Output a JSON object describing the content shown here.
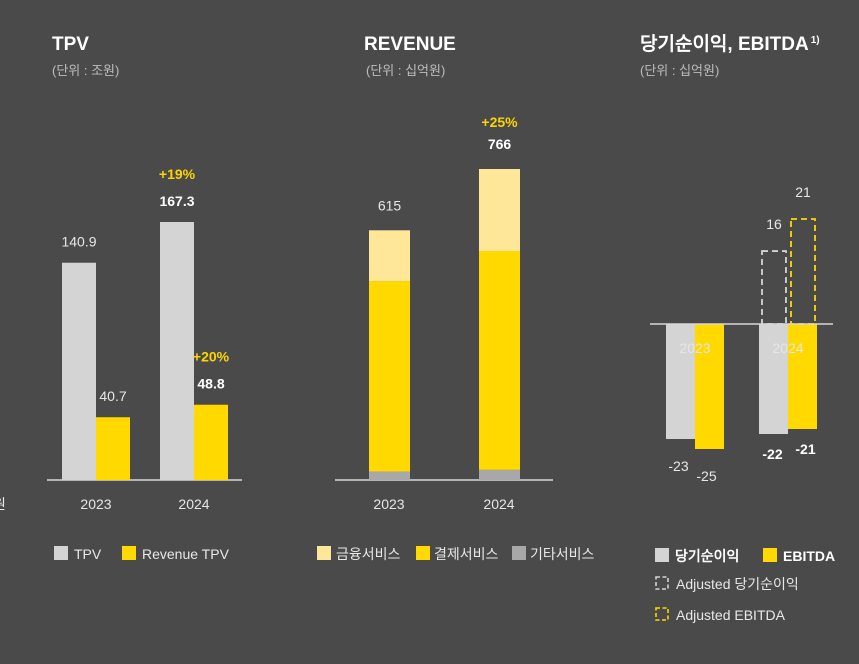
{
  "colors": {
    "background": "#4a4a4a",
    "gray": "#d4d4d4",
    "yellow": "#ffd900",
    "light_yellow": "#ffe79a",
    "dark_gray": "#a8a8a8",
    "growth": "#ffd400"
  },
  "edge_fragment": "원",
  "chart_data": [
    {
      "type": "bar",
      "title": "TPV",
      "unit": "(단위 : 조원)",
      "categories": [
        "2023",
        "2024"
      ],
      "series": [
        {
          "name": "TPV",
          "values": [
            140.9,
            167.3
          ],
          "labels": [
            "140.9",
            "167.3"
          ],
          "color": "#d4d4d4"
        },
        {
          "name": "Revenue TPV",
          "values": [
            40.7,
            48.8
          ],
          "labels": [
            "40.7",
            "48.8"
          ],
          "color": "#ffd900"
        }
      ],
      "growth": [
        {
          "series": "TPV",
          "text": "+19%"
        },
        {
          "series": "Revenue TPV",
          "text": "+20%"
        }
      ],
      "ylim": [
        0,
        190
      ]
    },
    {
      "type": "bar",
      "stacked": true,
      "title": "REVENUE",
      "unit": "(단위 : 십억원)",
      "categories": [
        "2023",
        "2024"
      ],
      "series": [
        {
          "name": "기타서비스",
          "values": [
            21,
            25
          ],
          "color": "#a8a8a8"
        },
        {
          "name": "결제서비스",
          "values": [
            469,
            539
          ],
          "color": "#ffd900"
        },
        {
          "name": "금융서비스",
          "values": [
            125,
            202
          ],
          "color": "#ffe79a"
        }
      ],
      "totals": [
        "615",
        "766"
      ],
      "growth": "+25%",
      "legend_order": [
        "금융서비스",
        "결제서비스",
        "기타서비스"
      ],
      "ylim": [
        0,
        1000
      ]
    },
    {
      "type": "bar",
      "title": "당기순이익, EBITDA",
      "title_sup": "1)",
      "unit": "(단위 : 십억원)",
      "categories": [
        "2023",
        "2024"
      ],
      "series": [
        {
          "name": "당기순이익",
          "values": [
            -23,
            -22
          ],
          "labels": [
            "-23",
            "-22"
          ],
          "color": "#d4d4d4"
        },
        {
          "name": "EBITDA",
          "values": [
            -25,
            -21
          ],
          "labels": [
            "-25",
            "-21"
          ],
          "color": "#ffd900"
        },
        {
          "name": "Adjusted 당기순이익",
          "values": [
            null,
            16
          ],
          "labels": [
            "",
            "16"
          ],
          "color": "#d4d4d4",
          "style": "dashed"
        },
        {
          "name": "Adjusted EBITDA",
          "values": [
            null,
            21
          ],
          "labels": [
            "",
            "21"
          ],
          "color": "#ffd900",
          "style": "dashed"
        }
      ],
      "ylim": [
        -30,
        30
      ]
    }
  ]
}
